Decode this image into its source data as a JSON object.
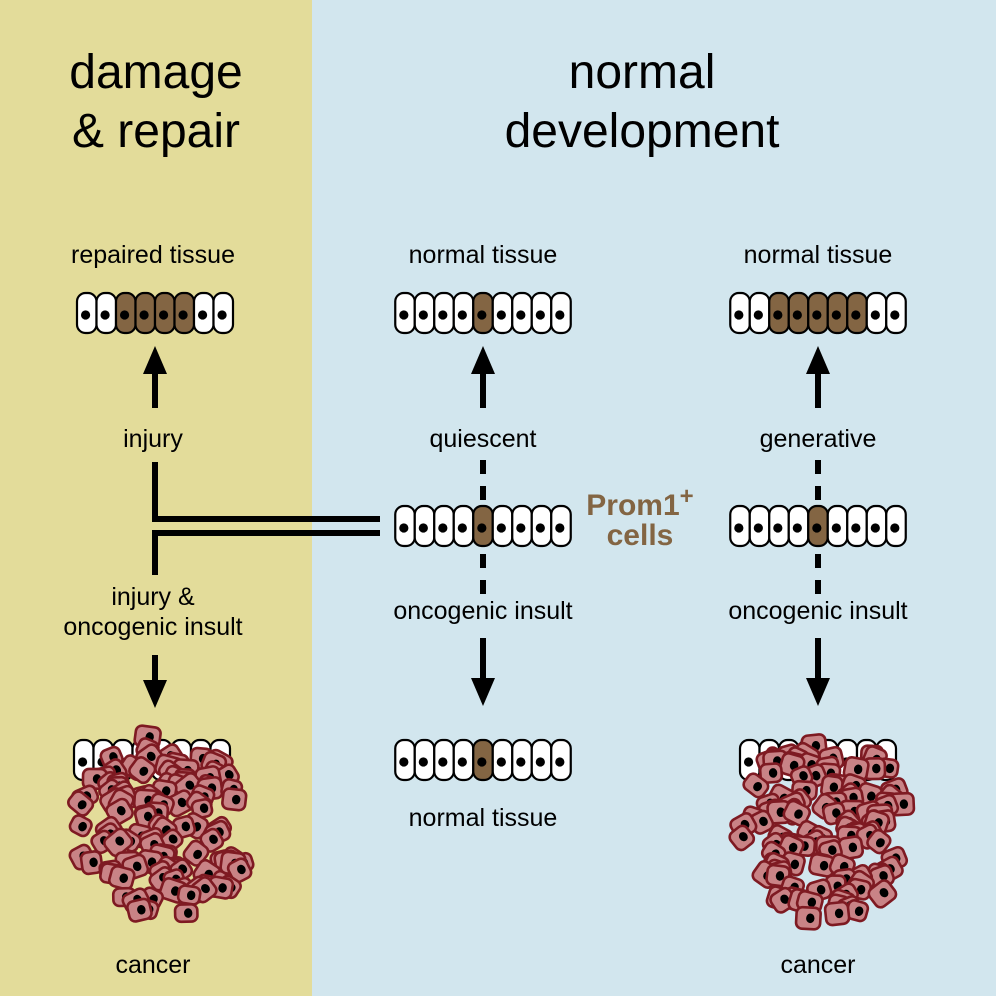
{
  "colors": {
    "damage_panel": "#E3DC9A",
    "normal_panel": "#D2E6EE",
    "brown_cell": "#836543",
    "white_cell": "#FFFFFF",
    "cancer_cell_fill": "#C98386",
    "cancer_cell_stroke": "#7E1A22",
    "prom_label": "#836543"
  },
  "panels": {
    "damage": {
      "title_line1": "damage",
      "title_line2": "& repair",
      "top_label": "repaired tissue",
      "upper_arrow_label": "injury",
      "lower_arrow_label_line1": "injury &",
      "lower_arrow_label_line2": "oncogenic insult",
      "bottom_label": "cancer"
    },
    "normal": {
      "title_line1": "normal",
      "title_line2": "development",
      "left_column": {
        "top_label": "normal tissue",
        "upper_arrow_label": "quiescent",
        "lower_arrow_label": "oncogenic insult",
        "bottom_label": "normal tissue"
      },
      "right_column": {
        "top_label": "normal tissue",
        "upper_arrow_label": "generative",
        "lower_arrow_label": "oncogenic insult",
        "bottom_label": "cancer"
      }
    }
  },
  "prom_cells": {
    "line1": "Prom1",
    "superscript": "+",
    "line2": "cells"
  },
  "tissue_rows": {
    "repaired": [
      0,
      0,
      1,
      1,
      1,
      1,
      0,
      0
    ],
    "normal_left_top": [
      0,
      0,
      0,
      0,
      1,
      0,
      0,
      0,
      0
    ],
    "normal_right_top": [
      0,
      0,
      1,
      1,
      1,
      1,
      1,
      0,
      0
    ],
    "prom_left": [
      0,
      0,
      0,
      0,
      1,
      0,
      0,
      0,
      0
    ],
    "prom_right": [
      0,
      0,
      0,
      0,
      1,
      0,
      0,
      0,
      0
    ],
    "normal_left_bottom": [
      0,
      0,
      0,
      0,
      1,
      0,
      0,
      0,
      0
    ],
    "cancer_left_row": [
      0,
      0,
      0,
      0,
      0,
      0,
      0,
      0
    ],
    "cancer_right_row": [
      0,
      0,
      0,
      0,
      0,
      0,
      0,
      0
    ]
  }
}
